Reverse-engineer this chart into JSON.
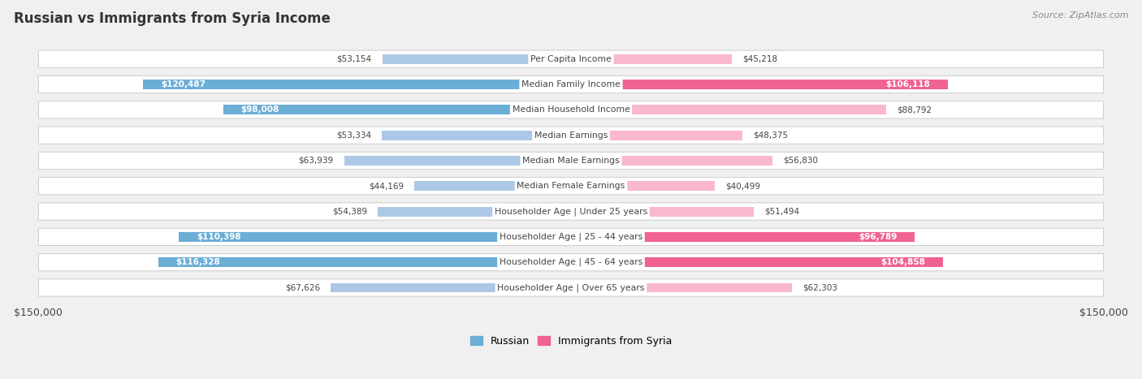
{
  "title": "Russian vs Immigrants from Syria Income",
  "source": "Source: ZipAtlas.com",
  "max_value": 150000,
  "categories": [
    "Per Capita Income",
    "Median Family Income",
    "Median Household Income",
    "Median Earnings",
    "Median Male Earnings",
    "Median Female Earnings",
    "Householder Age | Under 25 years",
    "Householder Age | 25 - 44 years",
    "Householder Age | 45 - 64 years",
    "Householder Age | Over 65 years"
  ],
  "russian_values": [
    53154,
    120487,
    98008,
    53334,
    63939,
    44169,
    54389,
    110398,
    116328,
    67626
  ],
  "syria_values": [
    45218,
    106118,
    88792,
    48375,
    56830,
    40499,
    51494,
    96789,
    104858,
    62303
  ],
  "russian_color_light": "#adc8e6",
  "russian_color_dark": "#6baed6",
  "syria_color_light": "#f9b8cc",
  "syria_color_dark": "#f06292",
  "background_color": "#f0f0f0",
  "row_bg_color": "#ffffff",
  "row_border_color": "#cccccc",
  "title_color": "#333333",
  "label_dark_color": "#444444",
  "label_white_color": "#ffffff",
  "legend_russian_color": "#6baed6",
  "legend_syria_color": "#f06292",
  "inside_label_threshold": 90000
}
